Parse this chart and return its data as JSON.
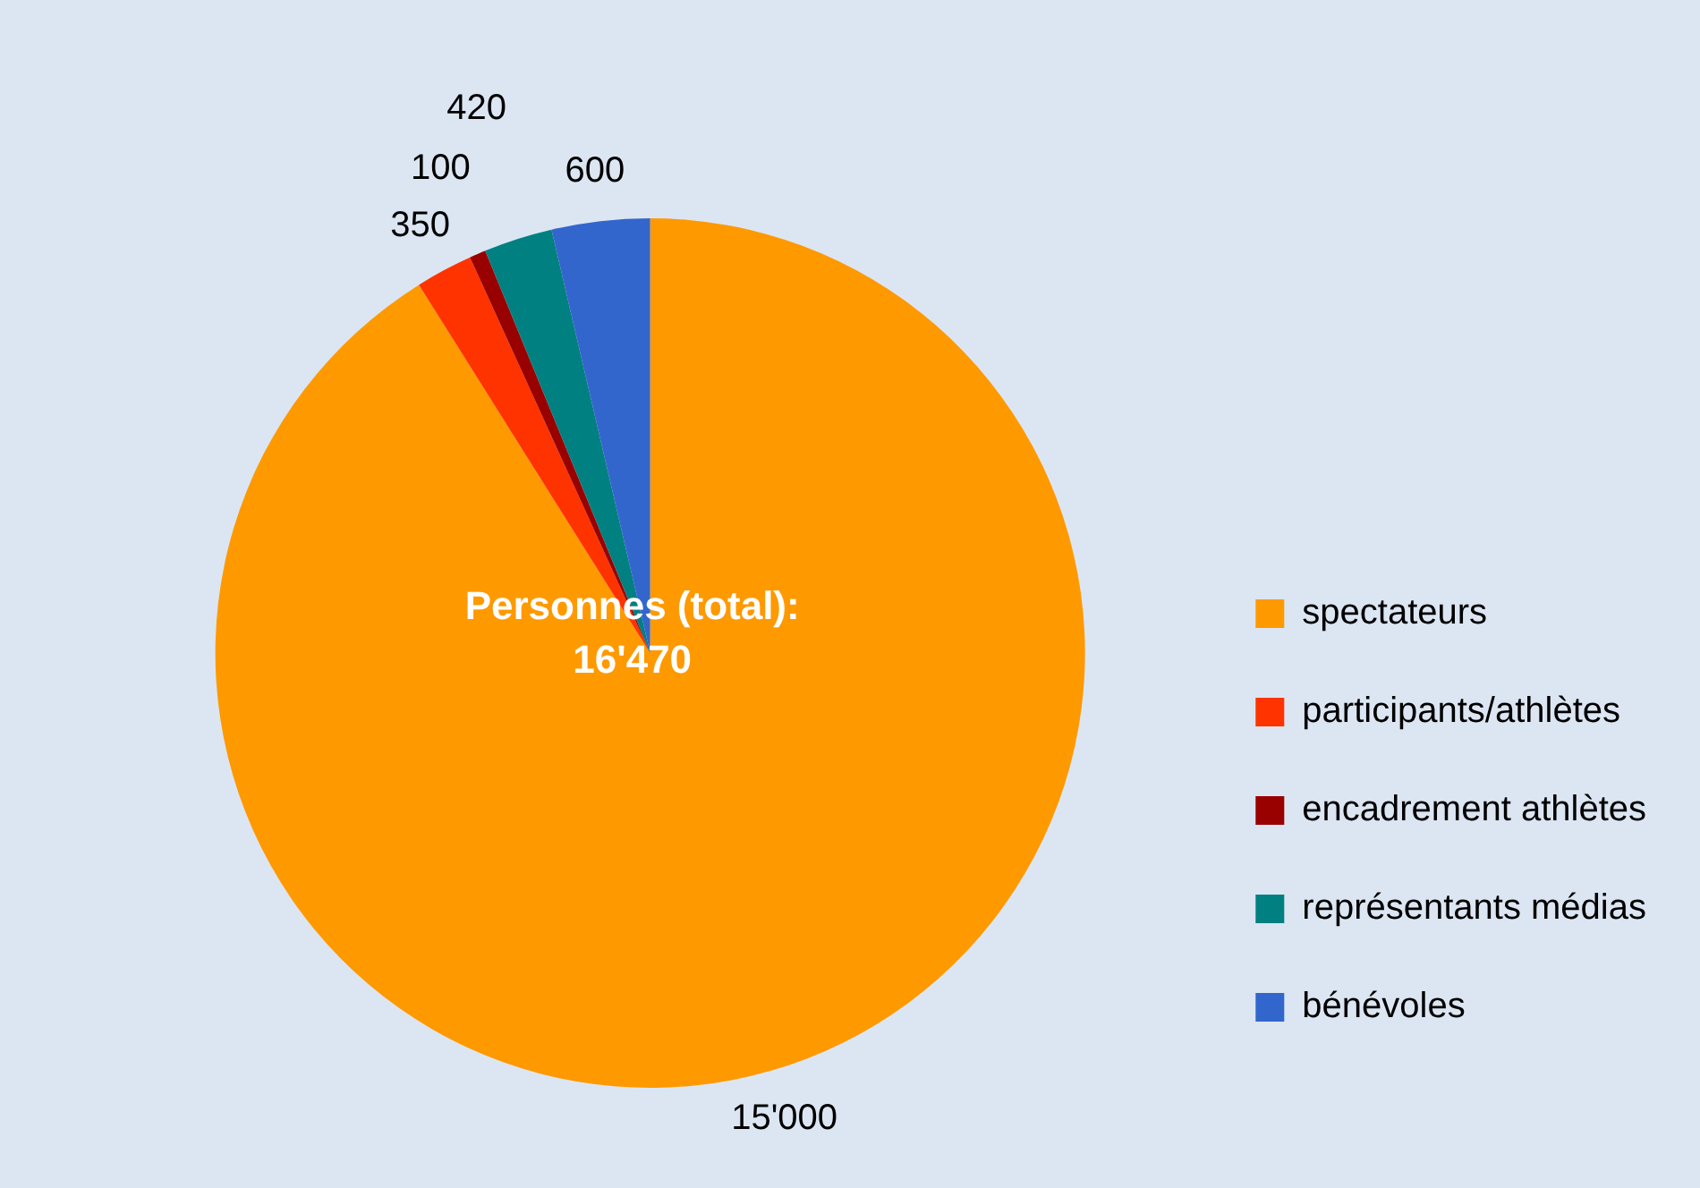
{
  "chart_data": {
    "type": "pie",
    "categories": [
      "spectateurs",
      "participants/athlètes",
      "encadrement athlètes",
      "représentants médias",
      "bénévoles"
    ],
    "values": [
      15000,
      350,
      100,
      420,
      600
    ],
    "colors": [
      "#ff9900",
      "#ff3300",
      "#990000",
      "#008080",
      "#3366cc"
    ],
    "value_labels": [
      "15'000",
      "350",
      "100",
      "420",
      "600"
    ],
    "annotations": [
      "Personnes (total):\n16'470"
    ],
    "legend": "right"
  }
}
